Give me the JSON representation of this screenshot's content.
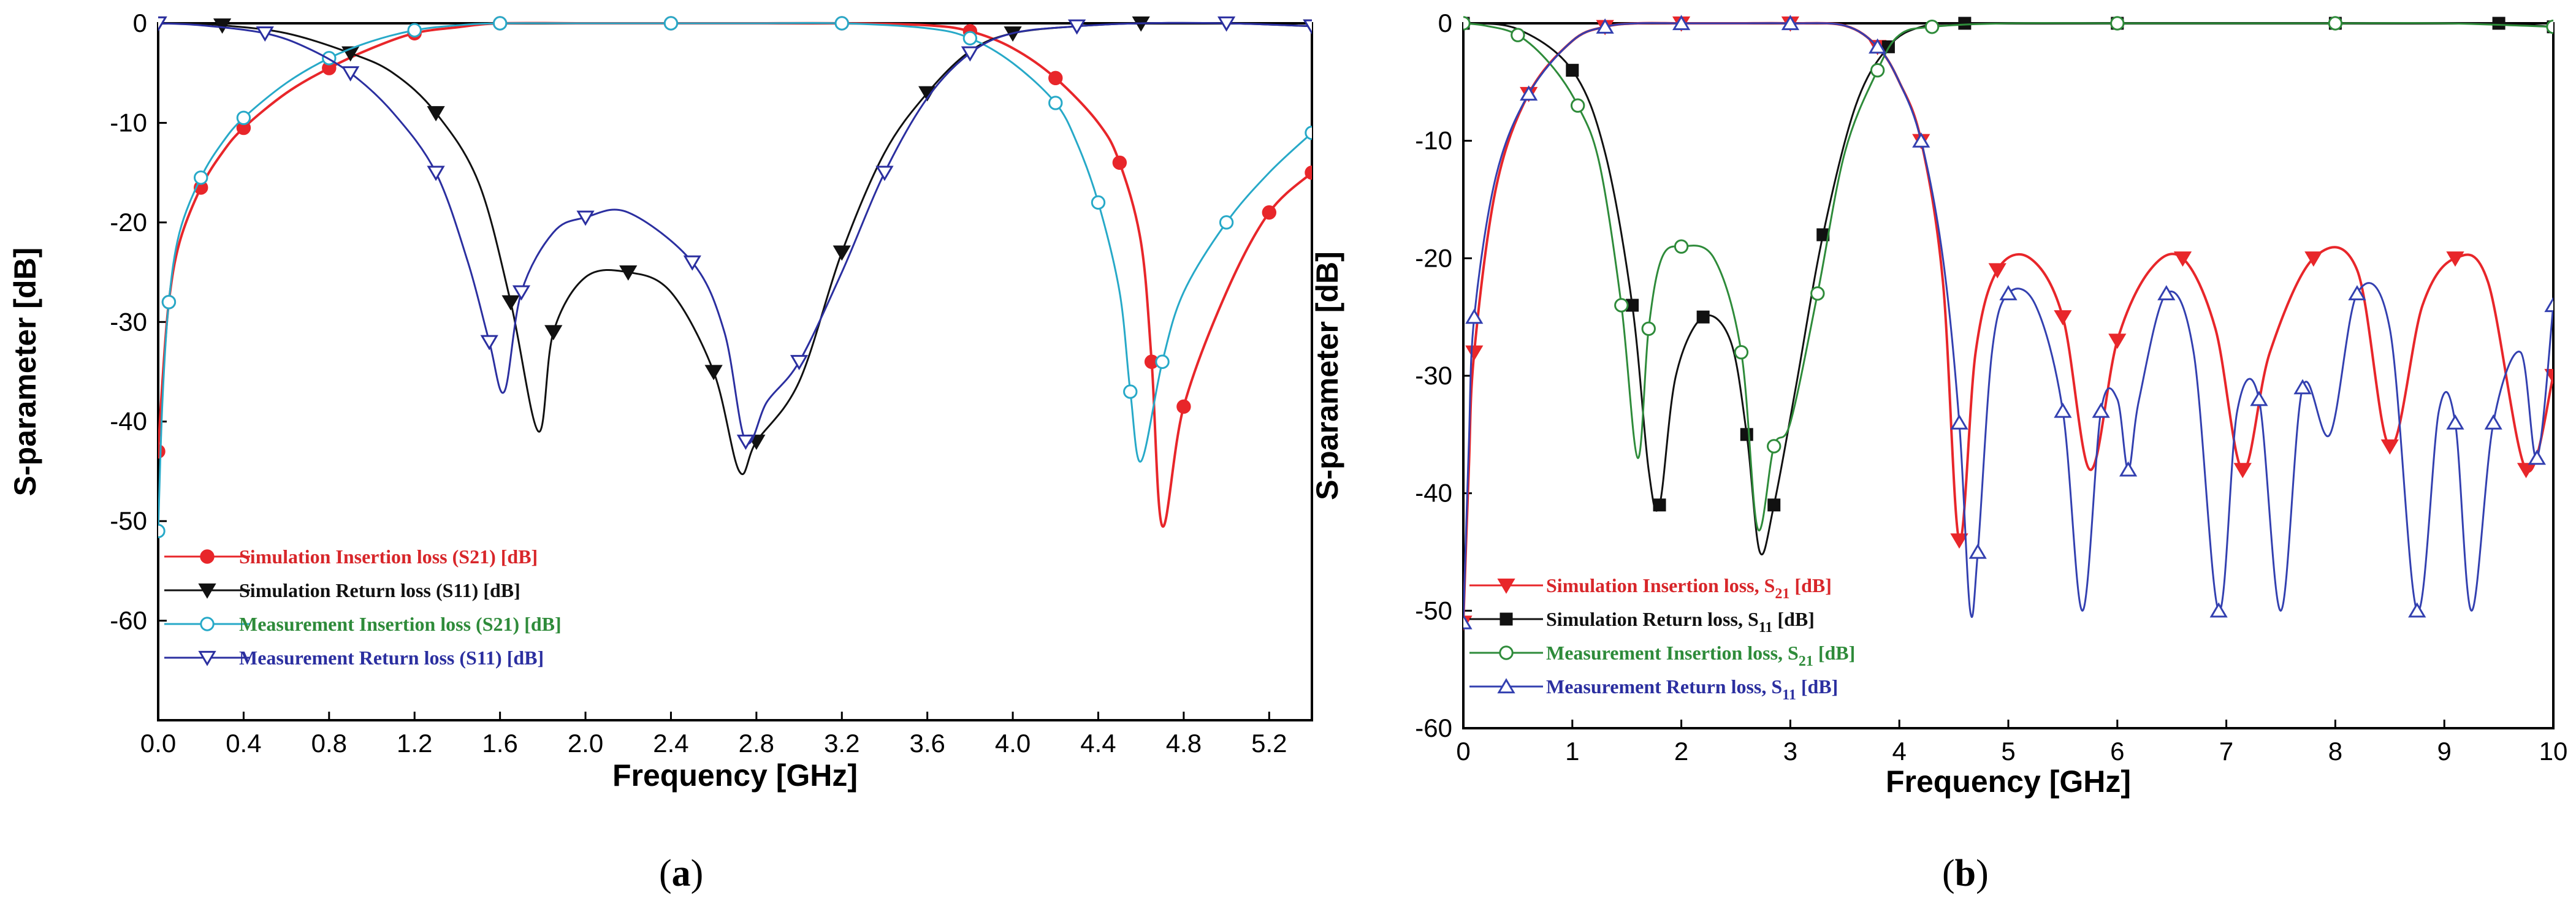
{
  "chart_data": [
    {
      "type": "line",
      "panel_label": "a",
      "xlabel": "Frequency [GHz]",
      "ylabel": "S-parameter [dB]",
      "xlim": [
        0,
        5.4
      ],
      "ylim": [
        -70,
        0
      ],
      "xticks": [
        "0.0",
        "0.4",
        "0.8",
        "1.2",
        "1.6",
        "2.0",
        "2.4",
        "2.8",
        "3.2",
        "3.6",
        "4.0",
        "4.4",
        "4.8",
        "5.2"
      ],
      "yticks": [
        "0",
        "-10",
        "-20",
        "-30",
        "-40",
        "-50",
        "-60"
      ],
      "legend_position": "bottom-left",
      "series": [
        {
          "name": "Simulation Insertion loss (S21) [dB]",
          "color": "#e8262a",
          "marker": "circle-filled",
          "x": [
            0,
            0.02,
            0.05,
            0.1,
            0.2,
            0.3,
            0.4,
            0.6,
            0.8,
            1.0,
            1.2,
            1.4,
            1.6,
            2.0,
            2.4,
            2.8,
            3.2,
            3.6,
            3.8,
            4.0,
            4.2,
            4.4,
            4.5,
            4.6,
            4.65,
            4.7,
            4.8,
            5.0,
            5.2,
            5.4
          ],
          "values": [
            -43,
            -36,
            -28,
            -22,
            -16.5,
            -13,
            -10.5,
            -7,
            -4.5,
            -2.5,
            -1,
            -0.4,
            0,
            0,
            0,
            0,
            0,
            -0.2,
            -0.8,
            -2.5,
            -5.5,
            -10,
            -14,
            -22,
            -34,
            -50.5,
            -38.5,
            -27,
            -19,
            -15
          ]
        },
        {
          "name": "Simulation Return loss (S11) [dB]",
          "color": "#111111",
          "marker": "triangle-down-filled",
          "x": [
            0,
            0.1,
            0.3,
            0.6,
            0.9,
            1.1,
            1.3,
            1.5,
            1.65,
            1.78,
            1.85,
            2.0,
            2.2,
            2.4,
            2.6,
            2.72,
            2.8,
            3.0,
            3.2,
            3.4,
            3.6,
            3.8,
            4.0,
            4.3,
            4.6,
            5.0,
            5.4
          ],
          "values": [
            0,
            0,
            -0.2,
            -1,
            -3,
            -5,
            -9,
            -16,
            -28,
            -41,
            -31,
            -25.5,
            -25,
            -27,
            -35,
            -45,
            -42,
            -36,
            -23,
            -13,
            -7,
            -2.8,
            -1,
            -0.3,
            0,
            0,
            -0.3
          ]
        },
        {
          "name": "Measurement Insertion loss (S21) [dB]",
          "color": "#27a9c8",
          "marker": "circle-open",
          "x": [
            0,
            0.02,
            0.05,
            0.1,
            0.2,
            0.3,
            0.4,
            0.6,
            0.8,
            1.0,
            1.2,
            1.4,
            1.6,
            2.0,
            2.4,
            2.8,
            3.2,
            3.6,
            3.8,
            4.0,
            4.2,
            4.3,
            4.4,
            4.5,
            4.55,
            4.6,
            4.7,
            4.8,
            5.0,
            5.2,
            5.4
          ],
          "values": [
            -51,
            -38,
            -28,
            -21,
            -15.5,
            -12,
            -9.5,
            -6,
            -3.5,
            -1.8,
            -0.7,
            -0.2,
            0,
            0,
            0,
            0,
            0,
            -0.5,
            -1.5,
            -4,
            -8,
            -12,
            -18,
            -27,
            -37,
            -44,
            -34,
            -27,
            -20,
            -15,
            -11
          ]
        },
        {
          "name": "Measurement Return loss (S11) [dB]",
          "color": "#2b2fa0",
          "marker": "triangle-down-open",
          "x": [
            0,
            0.2,
            0.5,
            0.7,
            0.9,
            1.1,
            1.3,
            1.45,
            1.55,
            1.62,
            1.7,
            1.85,
            2.0,
            2.2,
            2.5,
            2.65,
            2.75,
            2.85,
            3.0,
            3.2,
            3.4,
            3.6,
            3.8,
            4.0,
            4.3,
            4.6,
            5.0,
            5.4
          ],
          "values": [
            0,
            -0.2,
            -1,
            -2.5,
            -5,
            -9,
            -15,
            -24,
            -32,
            -37,
            -27,
            -21,
            -19.5,
            -19,
            -24,
            -31,
            -42,
            -38,
            -34,
            -25,
            -15,
            -7.5,
            -3,
            -1,
            -0.3,
            0,
            0,
            -0.3
          ]
        }
      ]
    },
    {
      "type": "line",
      "panel_label": "b",
      "xlabel": "Frequency [GHz]",
      "ylabel": "S-parameter [dB]",
      "xlim": [
        0,
        10
      ],
      "ylim": [
        -60,
        0
      ],
      "xticks": [
        "0",
        "1",
        "2",
        "3",
        "4",
        "5",
        "6",
        "7",
        "8",
        "9",
        "10"
      ],
      "yticks": [
        "0",
        "-10",
        "-20",
        "-30",
        "-40",
        "-50",
        "-60"
      ],
      "legend_position": "bottom-left",
      "series": [
        {
          "name": "Simulation Insertion loss, S21 [dB]",
          "color": "#e8262a",
          "marker": "triangle-down-filled",
          "x": [
            0,
            0.05,
            0.1,
            0.3,
            0.6,
            1.0,
            1.3,
            1.6,
            2.0,
            2.5,
            3.0,
            3.5,
            3.8,
            4.0,
            4.2,
            4.4,
            4.55,
            4.7,
            4.9,
            5.2,
            5.5,
            5.75,
            6.0,
            6.3,
            6.6,
            6.9,
            7.15,
            7.4,
            7.8,
            8.2,
            8.5,
            8.8,
            9.1,
            9.4,
            9.75,
            10.0
          ],
          "values": [
            -51,
            -38,
            -28,
            -14,
            -6,
            -1.5,
            -0.3,
            0,
            0,
            0,
            0,
            -0.2,
            -2,
            -5,
            -10,
            -22,
            -44,
            -28,
            -21,
            -20,
            -25,
            -38,
            -27,
            -21,
            -20,
            -26,
            -38,
            -28,
            -20,
            -21,
            -36,
            -24,
            -20,
            -22,
            -38,
            -30
          ]
        },
        {
          "name": "Simulation Return loss, S11 [dB]",
          "color": "#111111",
          "marker": "square-filled",
          "x": [
            0,
            0.5,
            1.0,
            1.3,
            1.55,
            1.7,
            1.8,
            1.95,
            2.2,
            2.45,
            2.6,
            2.72,
            2.85,
            3.05,
            3.3,
            3.6,
            3.9,
            4.2,
            4.6,
            5.0,
            6.0,
            7.0,
            8.0,
            9.0,
            9.5,
            10.0
          ],
          "values": [
            0,
            -0.5,
            -4,
            -11,
            -24,
            -38,
            -41,
            -30,
            -25,
            -27,
            -35,
            -45,
            -41,
            -31,
            -18,
            -7,
            -2,
            -0.3,
            0,
            0,
            0,
            0,
            0,
            0,
            0,
            -0.3
          ]
        },
        {
          "name": "Measurement Insertion loss, S21 [dB]",
          "color": "#2e8b3a",
          "marker": "circle-open",
          "x": [
            0,
            0.2,
            0.5,
            0.8,
            1.05,
            1.25,
            1.45,
            1.6,
            1.7,
            1.82,
            2.0,
            2.3,
            2.55,
            2.7,
            2.85,
            3.0,
            3.25,
            3.5,
            3.8,
            4.0,
            4.3,
            5.0,
            6.0,
            7.0,
            8.0,
            9.0,
            10.0
          ],
          "values": [
            0,
            -0.2,
            -1,
            -3.5,
            -7,
            -12,
            -24,
            -37,
            -26,
            -20,
            -19,
            -20,
            -28,
            -43,
            -36,
            -34,
            -23,
            -11,
            -4,
            -1,
            -0.3,
            0,
            0,
            0,
            0,
            0,
            -0.3
          ]
        },
        {
          "name": "Measurement Return loss, S11 [dB]",
          "color": "#3340b0",
          "marker": "triangle-up-open",
          "x": [
            0,
            0.05,
            0.1,
            0.3,
            0.6,
            1.0,
            1.3,
            1.6,
            2.0,
            2.5,
            3.0,
            3.5,
            3.8,
            4.0,
            4.2,
            4.4,
            4.55,
            4.65,
            4.72,
            4.85,
            5.0,
            5.25,
            5.5,
            5.68,
            5.85,
            6.0,
            6.1,
            6.2,
            6.45,
            6.7,
            6.93,
            7.1,
            7.3,
            7.5,
            7.7,
            7.95,
            8.2,
            8.5,
            8.75,
            8.95,
            9.1,
            9.25,
            9.45,
            9.7,
            9.85,
            10.0
          ],
          "values": [
            -51,
            -36,
            -25,
            -13,
            -6,
            -1.5,
            -0.3,
            0,
            0,
            0,
            0,
            -0.2,
            -2,
            -5,
            -10,
            -20,
            -34,
            -50,
            -45,
            -28,
            -23,
            -24,
            -33,
            -50,
            -33,
            -32,
            -38,
            -32,
            -23,
            -28,
            -50,
            -33,
            -32,
            -50,
            -31,
            -35,
            -23,
            -26,
            -50,
            -33,
            -34,
            -50,
            -34,
            -28,
            -37,
            -24
          ]
        }
      ]
    }
  ],
  "panels": [
    {
      "legend": [
        "Simulation Insertion loss (S21) [dB]",
        "Simulation Return loss (S11) [dB]",
        "Measurement Insertion loss (S21) [dB]",
        "Measurement Return loss (S11) [dB]"
      ]
    },
    {
      "legend": [
        {
          "pre": "Simulation Insertion loss, S",
          "sub": "21",
          "post": " [dB]"
        },
        {
          "pre": "Simulation Return loss, S",
          "sub": "11",
          "post": " [dB]"
        },
        {
          "pre": "Measurement Insertion loss, S",
          "sub": "21",
          "post": " [dB]"
        },
        {
          "pre": "Measurement Return loss, S",
          "sub": "11",
          "post": " [dB]"
        }
      ]
    }
  ]
}
